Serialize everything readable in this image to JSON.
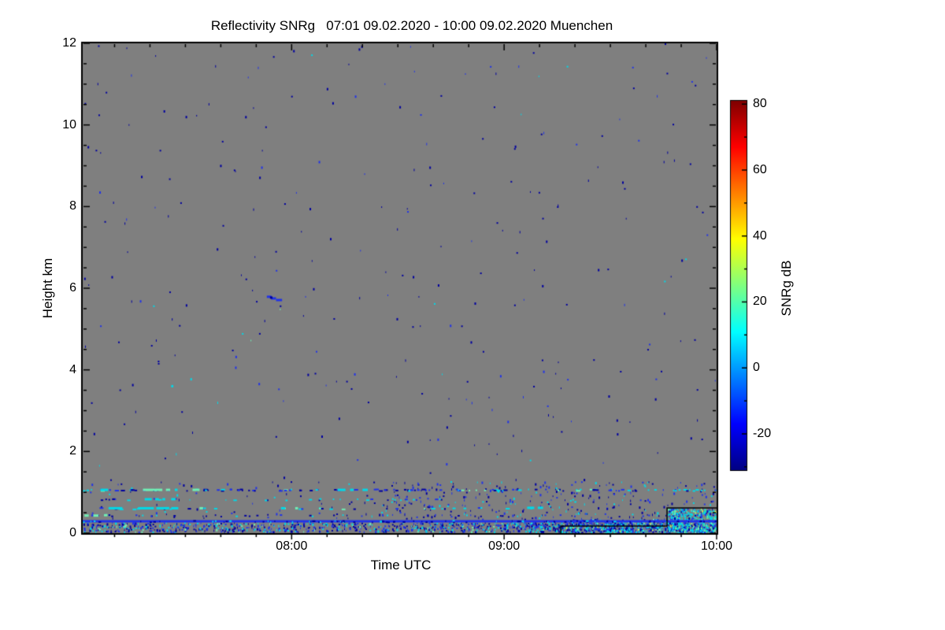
{
  "chart_data": {
    "type": "heatmap",
    "title": "Reflectivity SNRg   07:01 09.02.2020 - 10:00 09.02.2020 Muenchen",
    "site": "Muenchen",
    "time_start": "07:01 09.02.2020",
    "time_end": "10:00 09.02.2020",
    "xlabel": "Time UTC",
    "ylabel": "Height km",
    "x_range_minutes": [
      421,
      600
    ],
    "x_ticks_major": [
      "08:00",
      "09:00",
      "10:00"
    ],
    "x_minor_step_minutes": 10,
    "ylim": [
      0,
      12
    ],
    "y_ticks_major": [
      0,
      2,
      4,
      6,
      8,
      10,
      12
    ],
    "y_minor_step_km": 0.5,
    "background_color": "#7F7F7F",
    "axis_color": "#000000",
    "text_color": "#000000",
    "colorbar": {
      "label": "SNRg dB",
      "ticks": [
        -20,
        0,
        20,
        40,
        60,
        80
      ],
      "minor_step": 10,
      "range": [
        -31,
        81
      ],
      "colormap": "jet",
      "colormap_stops": [
        [
          0.0,
          "#000083"
        ],
        [
          0.125,
          "#0000FF"
        ],
        [
          0.375,
          "#00FFFF"
        ],
        [
          0.625,
          "#FFFF00"
        ],
        [
          0.875,
          "#FF0000"
        ],
        [
          1.0,
          "#7F0000"
        ]
      ]
    },
    "palette": {
      "darkblue": "#0000A0",
      "blue": "#2133E8",
      "cyan": "#00D9E8",
      "aqua": "#70EFB5",
      "green": "#4FE06E",
      "yellow": "#D8E84A"
    },
    "seed": 20200209,
    "features": {
      "descending_streak": {
        "time": "07:53",
        "height_km": 5.75
      },
      "continuous_layer_km": 0.3,
      "boundary_layer_top_km": 1.2
    },
    "layers": [
      {
        "kind": "speckle",
        "t": [
          421,
          600
        ],
        "h": [
          1.3,
          12
        ],
        "count": 290,
        "colors": {
          "darkblue": 0.72,
          "blue": 0.22,
          "cyan": 0.04,
          "aqua": 0.02
        }
      },
      {
        "kind": "speckle",
        "t": [
          421,
          600
        ],
        "h": [
          0.35,
          1.28
        ],
        "count": 130,
        "colors": {
          "darkblue": 0.55,
          "blue": 0.33,
          "cyan": 0.12
        }
      },
      {
        "kind": "speckle",
        "t": [
          505,
          600
        ],
        "h": [
          0.35,
          1.28
        ],
        "count": 270,
        "colors": {
          "darkblue": 0.42,
          "blue": 0.36,
          "cyan": 0.22
        }
      },
      {
        "kind": "dash_row",
        "hrow": 1.07,
        "t": [
          421,
          600
        ],
        "count": 110,
        "w": [
          0.3,
          1.2
        ],
        "colors": {
          "darkblue": 0.4,
          "blue": 0.3,
          "cyan": 0.22,
          "aqua": 0.08
        }
      },
      {
        "kind": "dash_row",
        "hrow": 0.84,
        "t": [
          421,
          525
        ],
        "count": 26,
        "w": [
          0.3,
          1.0
        ],
        "colors": {
          "cyan": 0.55,
          "blue": 0.2,
          "darkblue": 0.25
        }
      },
      {
        "kind": "dash_row",
        "hrow": 0.62,
        "t": [
          421,
          548
        ],
        "count": 30,
        "w": [
          0.3,
          1.2
        ],
        "colors": {
          "cyan": 0.45,
          "aqua": 0.2,
          "blue": 0.15,
          "darkblue": 0.2
        }
      },
      {
        "kind": "dash_row",
        "hrow": 0.45,
        "t": [
          421,
          600
        ],
        "count": 50,
        "w": [
          0.2,
          0.7
        ],
        "colors": {
          "blue": 0.35,
          "darkblue": 0.4,
          "cyan": 0.25
        }
      },
      {
        "kind": "speckle",
        "t": [
          421,
          600
        ],
        "h": [
          0.04,
          0.27
        ],
        "count": 1000,
        "colors": {
          "darkblue": 0.38,
          "blue": 0.32,
          "cyan": 0.24,
          "aqua": 0.06
        }
      },
      {
        "kind": "speckle",
        "t": [
          540,
          600
        ],
        "h": [
          0.04,
          0.27
        ],
        "count": 300,
        "colors": {
          "darkblue": 0.3,
          "blue": 0.35,
          "cyan": 0.3,
          "aqua": 0.05
        }
      },
      {
        "kind": "speckle",
        "t": [
          556,
          586
        ],
        "h": [
          0.02,
          0.35
        ],
        "count": 280,
        "colors": {
          "cyan": 0.35,
          "blue": 0.27,
          "darkblue": 0.2,
          "aqua": 0.13,
          "yellow": 0.05
        }
      },
      {
        "kind": "speckle",
        "t": [
          586,
          600
        ],
        "h": [
          0.02,
          0.62
        ],
        "count": 430,
        "colors": {
          "cyan": 0.48,
          "blue": 0.18,
          "darkblue": 0.1,
          "aqua": 0.14,
          "green": 0.05,
          "yellow": 0.05
        }
      },
      {
        "kind": "line",
        "hrow": 0.3,
        "t": [
          421,
          600
        ],
        "px": 3,
        "color": "blue"
      },
      {
        "kind": "dash_row",
        "hrow": 0.3,
        "t": [
          421,
          600
        ],
        "count": 90,
        "w": [
          0.15,
          0.8
        ],
        "colors": {
          "darkblue": 0.72,
          "cyan": 0.28
        }
      }
    ],
    "segments": [
      [
        426,
        1.07,
        2.2,
        "cyan"
      ],
      [
        438,
        1.07,
        5.5,
        "aqua"
      ],
      [
        444.5,
        1.07,
        1.2,
        "aqua"
      ],
      [
        447,
        1.07,
        0.8,
        "cyan"
      ],
      [
        452,
        1.07,
        2.0,
        "aqua"
      ],
      [
        493,
        1.07,
        2.2,
        "cyan"
      ],
      [
        496.5,
        1.07,
        1.0,
        "cyan"
      ],
      [
        500,
        1.07,
        1.5,
        "cyan"
      ],
      [
        438.5,
        0.84,
        2.0,
        "cyan"
      ],
      [
        441.5,
        0.84,
        1.0,
        "cyan"
      ],
      [
        443.5,
        0.84,
        0.8,
        "cyan"
      ],
      [
        446,
        0.84,
        1.2,
        "cyan"
      ],
      [
        428.3,
        0.62,
        3.9,
        "cyan"
      ],
      [
        436.6,
        0.62,
        4.5,
        "cyan"
      ],
      [
        441.8,
        0.62,
        3.5,
        "cyan"
      ],
      [
        446,
        0.62,
        2.0,
        "cyan"
      ],
      [
        421.5,
        0.44,
        1.2,
        "aqua"
      ],
      [
        424,
        0.44,
        1.5,
        "aqua"
      ],
      [
        427,
        0.45,
        1.0,
        "aqua"
      ],
      [
        454,
        0.62,
        1.0,
        "aqua"
      ],
      [
        477,
        0.62,
        1.2,
        "cyan"
      ],
      [
        481,
        0.62,
        0.8,
        "aqua"
      ],
      [
        546.5,
        0.63,
        2.0,
        "cyan"
      ],
      [
        549.5,
        0.63,
        1.5,
        "cyan"
      ],
      [
        446,
        3.61,
        0.6,
        "cyan"
      ],
      [
        473,
        5.8,
        1.3,
        "blue"
      ],
      [
        474.2,
        5.76,
        1.4,
        "blue"
      ],
      [
        475.6,
        5.72,
        1.7,
        "blue"
      ],
      [
        473.9,
        5.78,
        0.7,
        "darkblue"
      ]
    ],
    "overlay_step_line": {
      "color": "#000000",
      "points_min_km": [
        [
          556,
          0
        ],
        [
          556,
          0.174
        ],
        [
          586,
          0.174
        ],
        [
          586,
          0.617
        ],
        [
          600,
          0.617
        ]
      ]
    }
  }
}
